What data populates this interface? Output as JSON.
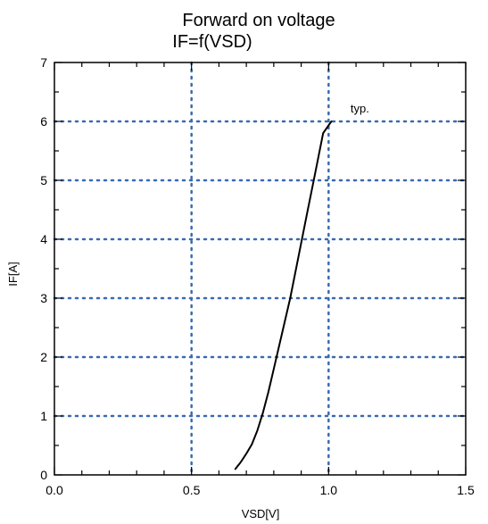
{
  "chart_data": {
    "type": "line",
    "title_lines": [
      "Forward on voltage",
      "IF=f(VSD)"
    ],
    "xlabel": "VSD[V]",
    "ylabel": "IF[A]",
    "xlim": [
      0,
      1.5
    ],
    "ylim": [
      0,
      7
    ],
    "x_ticks": [
      0,
      0.5,
      1.0,
      1.5
    ],
    "x_tick_labels": [
      "0.0",
      "0.5",
      "1.0",
      "1.5"
    ],
    "y_ticks": [
      0,
      1,
      2,
      3,
      4,
      5,
      6,
      7
    ],
    "y_tick_labels": [
      "0",
      "1",
      "2",
      "3",
      "4",
      "5",
      "6",
      "7"
    ],
    "x_grid": [
      0.5,
      1.0
    ],
    "y_grid": [
      1,
      2,
      3,
      4,
      5,
      6
    ],
    "grid_style": "dotted",
    "grid_color": "#3a6ab0",
    "line_color": "#000000",
    "series": [
      {
        "x": [
          0.66,
          0.68,
          0.7,
          0.72,
          0.74,
          0.76,
          0.78,
          0.8,
          0.83,
          0.86,
          0.89,
          0.92,
          0.95,
          0.98,
          1.01
        ],
        "y": [
          0.1,
          0.22,
          0.36,
          0.52,
          0.75,
          1.05,
          1.4,
          1.8,
          2.4,
          3.0,
          3.7,
          4.4,
          5.1,
          5.8,
          6.0
        ]
      }
    ],
    "annotations": [
      {
        "text": "typ.",
        "x": 1.08,
        "y": 6.15
      }
    ]
  }
}
